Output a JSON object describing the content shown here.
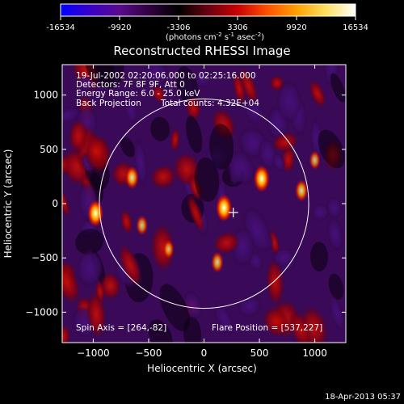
{
  "colorbar": {
    "tick_labels": [
      "-16534",
      "-9920",
      "-3306",
      "3306",
      "9920",
      "16534"
    ],
    "tick_values": [
      -16534,
      -9920,
      -3306,
      3306,
      9920,
      16534
    ],
    "units_main": "(photons cm",
    "units_exp1": "-2",
    "units_mid": " s",
    "units_exp2": "-1",
    "units_mid2": " asec",
    "units_exp3": "-2",
    "units_close": ")",
    "stops": [
      "#0000ff",
      "#3a00c8",
      "#5a0a8c",
      "#300040",
      "#000000",
      "#6a0010",
      "#c80000",
      "#ff5000",
      "#ffa000",
      "#ffe060",
      "#ffffff"
    ]
  },
  "chart_data": {
    "type": "heatmap",
    "title": "Reconstructed RHESSI Image",
    "xlabel": "Heliocentric X (arcsec)",
    "ylabel": "Heliocentric Y (arcsec)",
    "xlim": [
      -1280,
      1280
    ],
    "ylim": [
      -1280,
      1280
    ],
    "xticks": [
      -1000,
      -500,
      0,
      500,
      1000
    ],
    "xtick_labels": [
      "−1000",
      "−500",
      "0",
      "500",
      "1000"
    ],
    "yticks": [
      -1000,
      -500,
      0,
      500,
      1000
    ],
    "ytick_labels": [
      "−1000",
      "−500",
      "0",
      "500",
      "1000"
    ],
    "solar_limb_radius": 945,
    "spin_axis": [
      264,
      -82
    ],
    "flare_position": [
      537,
      227
    ],
    "bright_sources": [
      {
        "x": -980,
        "y": -90,
        "intensity": 16000
      },
      {
        "x": 180,
        "y": -40,
        "intensity": 16500
      },
      {
        "x": 520,
        "y": 230,
        "intensity": 16000
      },
      {
        "x": -650,
        "y": 240,
        "intensity": 12000
      },
      {
        "x": 880,
        "y": 120,
        "intensity": 11000
      },
      {
        "x": -560,
        "y": -200,
        "intensity": 9000
      },
      {
        "x": 1000,
        "y": 400,
        "intensity": 8000
      },
      {
        "x": 120,
        "y": -540,
        "intensity": 10000
      },
      {
        "x": -320,
        "y": -420,
        "intensity": 8000
      }
    ]
  },
  "annotations": {
    "time_range": "19-Jul-2002 02:20:06.000 to 02:25:16.000",
    "detectors": "Detectors: 7F 8F 9F, Att 0",
    "energy_range": "Energy Range: 6.0 - 25.0 keV",
    "method": "Back Projection",
    "total_counts": "Total counts: 4.32E+04",
    "spin_axis_label": "Spin Axis = [264,-82]",
    "flare_position_label": "Flare Position = [537,227]"
  },
  "footer": {
    "timestamp": "18-Apr-2013 05:37"
  }
}
